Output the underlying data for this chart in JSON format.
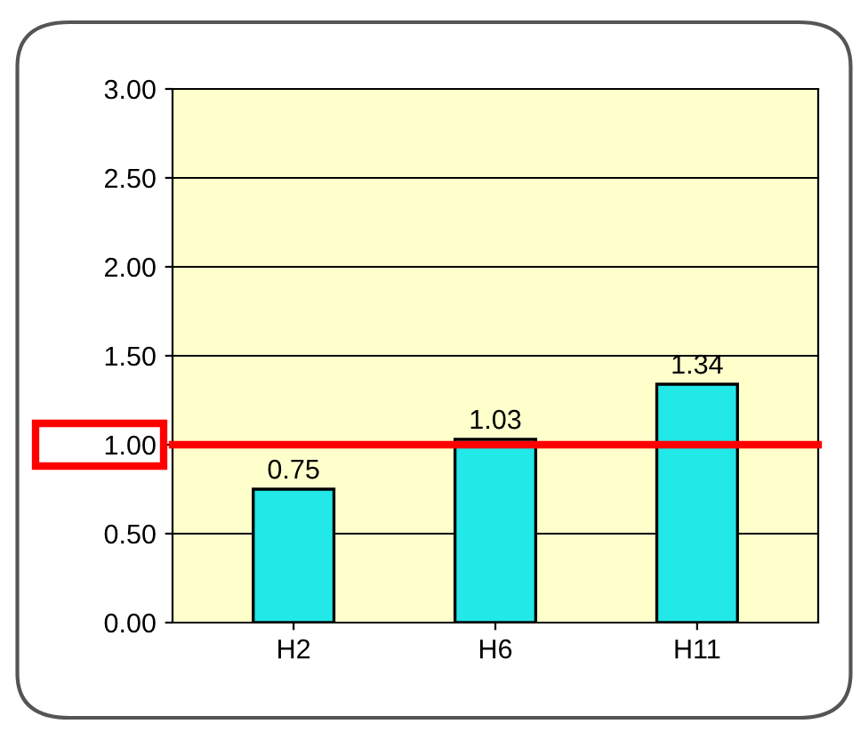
{
  "chart_data": {
    "type": "bar",
    "categories": [
      "H2",
      "H6",
      "H11"
    ],
    "values": [
      0.75,
      1.03,
      1.34
    ],
    "color": "#22e8e8",
    "ylim": [
      0,
      3
    ],
    "yticks": [
      {
        "value": 0,
        "label": "0.00"
      },
      {
        "value": 0.5,
        "label": "0.50"
      },
      {
        "value": 1,
        "label": "1.00"
      },
      {
        "value": 1.5,
        "label": "1.50"
      },
      {
        "value": 2,
        "label": "2.00"
      },
      {
        "value": 2.5,
        "label": "2.50"
      },
      {
        "value": 3,
        "label": "3.00"
      }
    ],
    "grid": "y",
    "data_labels": true,
    "ref_lines": [
      {
        "axis": "y",
        "value": 1.0,
        "color": "#ff0000"
      }
    ]
  }
}
